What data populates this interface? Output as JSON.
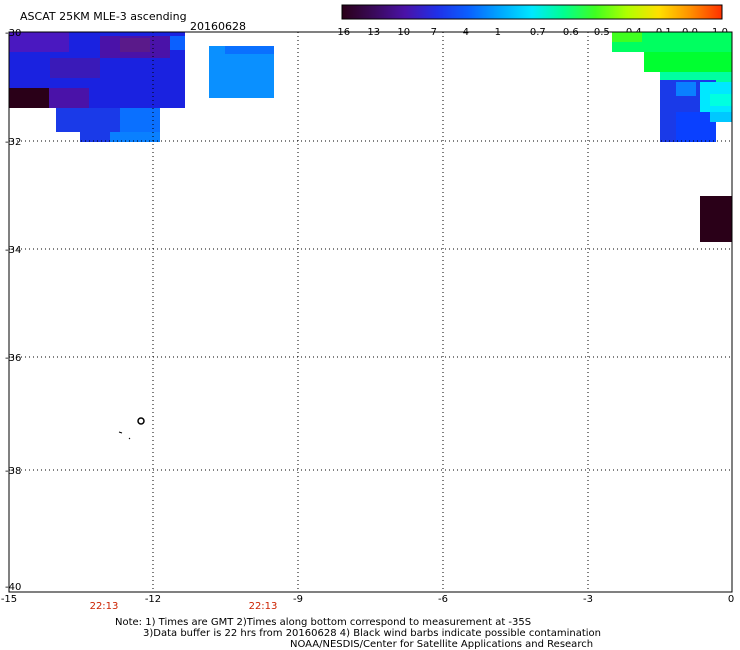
{
  "map": {
    "title": "ASCAT 25KM MLE-3 ascending",
    "date": "20160628",
    "lat_labels": [
      "-30",
      "-32",
      "-34",
      "-36",
      "-38",
      "-40"
    ],
    "lon_labels": [
      "-15",
      "-12",
      "-9",
      "-6",
      "-3",
      "0"
    ],
    "time_labels": [
      "22:13",
      "22:13"
    ],
    "lat_range": [
      -40,
      -30
    ],
    "lon_range": [
      -15,
      0
    ]
  },
  "colorbar": {
    "tick_labels": [
      "-16",
      "-13",
      "-10",
      "-7",
      "-4",
      "-1",
      "-0.7",
      "-0.6",
      "-0.5",
      "-0.4",
      "-0.1",
      "0.0",
      "1.0"
    ],
    "colors": [
      "#2a0018",
      "#3a0a5a",
      "#4a12a8",
      "#2030e8",
      "#0a60ff",
      "#00a8ff",
      "#00e8ff",
      "#00ff90",
      "#40ff20",
      "#b0ff00",
      "#ffe000",
      "#ff9000",
      "#ff3000"
    ]
  },
  "notes": {
    "line1": "Note: 1) Times are GMT 2)Times along bottom correspond to measurement at -35S",
    "line2": "3)Data buffer is 22 hrs from 20160628 4) Black wind barbs indicate possible contamination",
    "line3": "NOAA/NESDIS/Center for Satellite Applications and Research"
  }
}
